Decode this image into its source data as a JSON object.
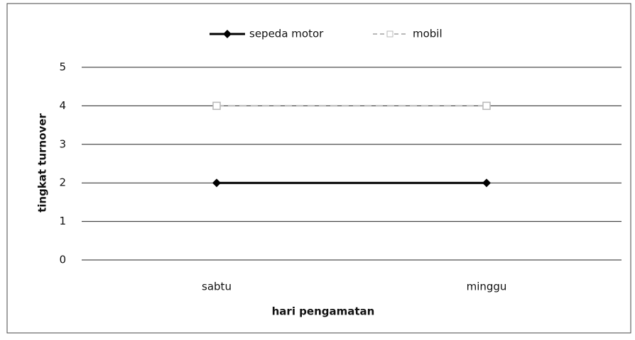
{
  "chart_data": {
    "type": "line",
    "categories": [
      "sabtu",
      "minggu"
    ],
    "series": [
      {
        "name": "sepeda motor",
        "color": "#000000",
        "values": [
          2,
          2
        ]
      },
      {
        "name": "mobil",
        "color": "#b8b8b8",
        "values": [
          4,
          4
        ]
      }
    ],
    "xlabel": "hari pengamatan",
    "ylabel": "tingkat turnover",
    "ylim": [
      0,
      5
    ],
    "yticks": [
      0,
      1,
      2,
      3,
      4,
      5
    ],
    "grid": true,
    "legend": "top"
  }
}
